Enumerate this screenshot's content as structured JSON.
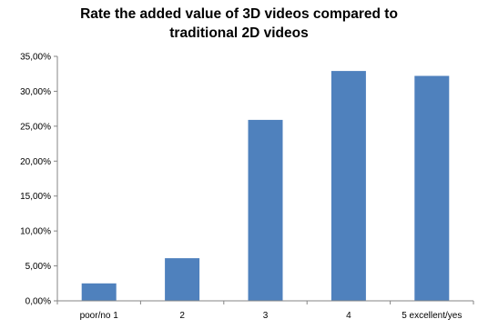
{
  "chart_data": {
    "type": "bar",
    "title": "Rate the added value of 3D videos compared to traditional 2D videos",
    "title_lines": [
      "Rate the added value of 3D videos compared to",
      "traditional 2D videos"
    ],
    "categories": [
      "poor/no 1",
      "2",
      "3",
      "4",
      "5 excellent/yes"
    ],
    "values": [
      2.5,
      6.1,
      25.9,
      32.9,
      32.2
    ],
    "ylim": [
      0,
      35
    ],
    "yticks": [
      0,
      5,
      10,
      15,
      20,
      25,
      30,
      35
    ],
    "ytick_labels": [
      "0,00%",
      "5,00%",
      "10,00%",
      "15,00%",
      "20,00%",
      "25,00%",
      "30,00%",
      "35,00%"
    ],
    "xlabel": "",
    "ylabel": "",
    "grid": false,
    "legend": "none",
    "bar_color": "#4f81bd",
    "axis_color": "#868686"
  }
}
